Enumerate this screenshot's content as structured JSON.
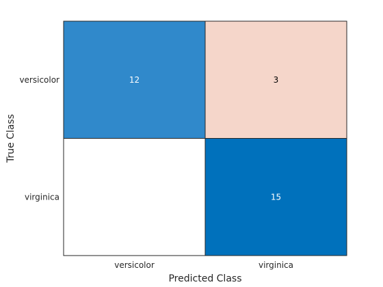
{
  "chart_data": {
    "type": "heatmap",
    "title": "",
    "xlabel": "Predicted Class",
    "ylabel": "True Class",
    "x_categories": [
      "versicolor",
      "virginica"
    ],
    "y_categories": [
      "versicolor",
      "virginica"
    ],
    "matrix": [
      [
        12,
        3
      ],
      [
        0,
        15
      ]
    ],
    "cell_colors": [
      [
        "#3089cb",
        "#f5d6ca"
      ],
      [
        "#ffffff",
        "#0071bc"
      ]
    ],
    "cell_text_colors": [
      [
        "#ffffff",
        "#000000"
      ],
      [
        "#000000",
        "#ffffff"
      ]
    ],
    "show_zero_values": false,
    "grid": true,
    "legend": "none"
  }
}
